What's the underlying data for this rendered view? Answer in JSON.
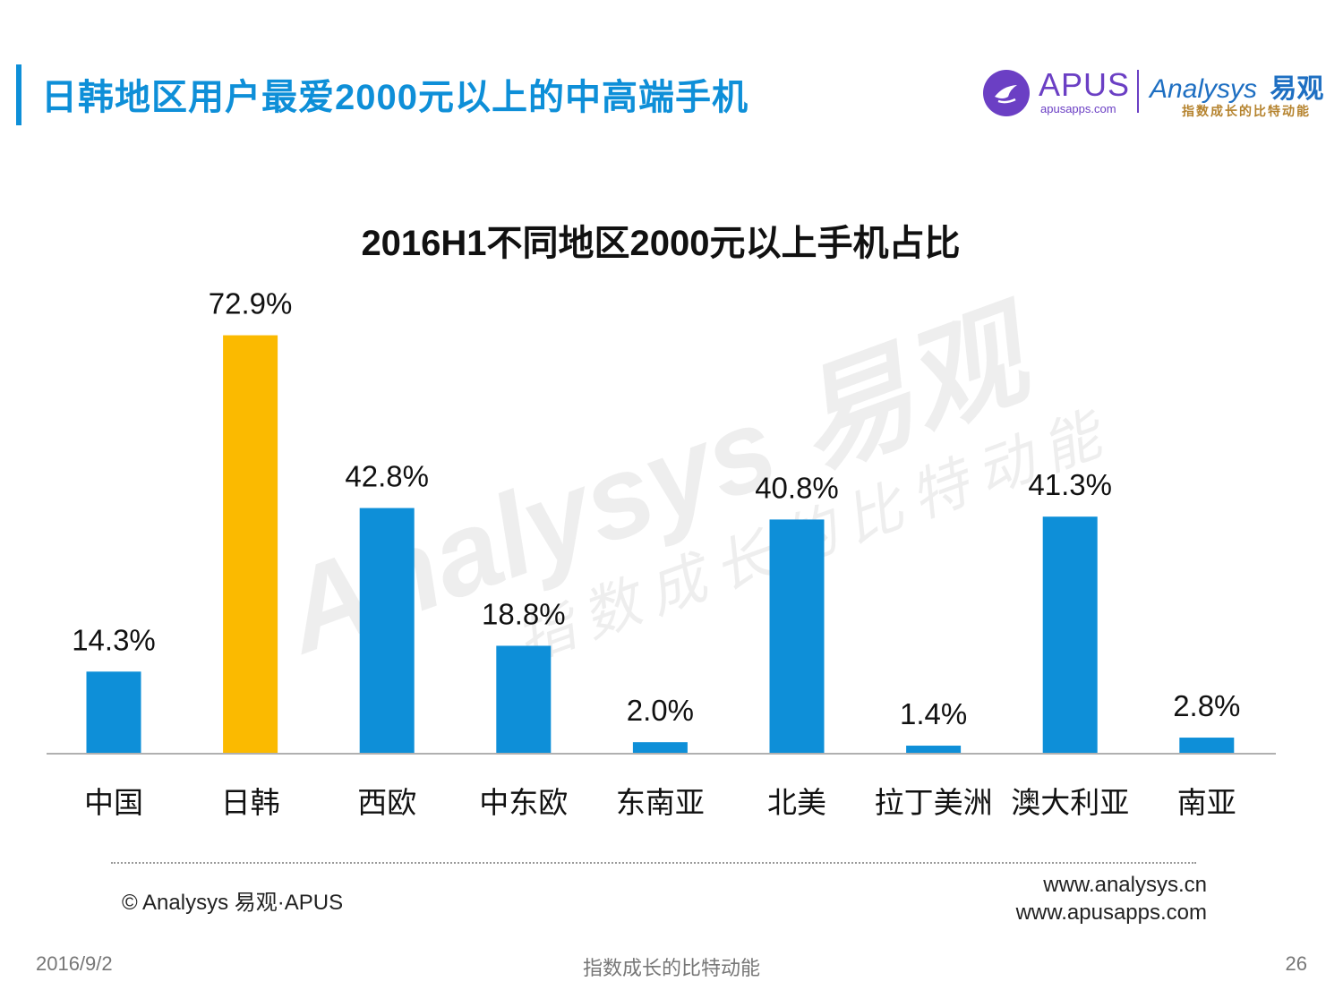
{
  "header": {
    "title": "日韩地区用户最爱2000元以上的中高端手机",
    "logo": {
      "apus_name": "APUS",
      "apus_domain": "apusapps.com",
      "analysys_name": "Analysys",
      "analysys_cn": "易观",
      "analysys_slogan": "指数成长的比特动能"
    }
  },
  "watermark": {
    "main": "Analysys 易观",
    "sub": "指数成长的比特动能"
  },
  "chart_data": {
    "type": "bar",
    "title": "2016H1不同地区2000元以上手机占比",
    "categories": [
      "中国",
      "日韩",
      "西欧",
      "中东欧",
      "东南亚",
      "北美",
      "拉丁美洲",
      "澳大利亚",
      "南亚"
    ],
    "values": [
      14.3,
      72.9,
      42.8,
      18.8,
      2.0,
      40.8,
      1.4,
      41.3,
      2.8
    ],
    "value_labels": [
      "14.3%",
      "72.9%",
      "42.8%",
      "18.8%",
      "2.0%",
      "40.8%",
      "1.4%",
      "41.3%",
      "2.8%"
    ],
    "highlight_index": 1,
    "colors": {
      "default": "#0E8FD8",
      "highlight": "#FBBA00"
    },
    "xlabel": "",
    "ylabel": "",
    "ylim": [
      0,
      80
    ],
    "grid": false,
    "legend": "none"
  },
  "footer": {
    "copyright": "© Analysys 易观·APUS",
    "url1": "www.analysys.cn",
    "url2": "www.apusapps.com",
    "date": "2016/9/2",
    "slogan": "指数成长的比特动能",
    "page": "26"
  }
}
